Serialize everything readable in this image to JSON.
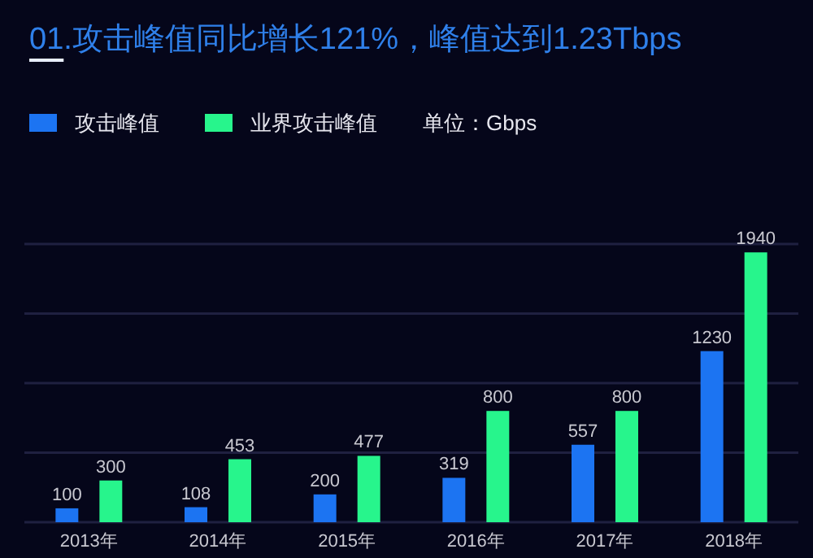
{
  "chart_data": {
    "type": "bar",
    "title": "01.攻击峰值同比增长121%，峰值达到1.23Tbps",
    "categories": [
      "2013年",
      "2014年",
      "2015年",
      "2016年",
      "2017年",
      "2018年"
    ],
    "series": [
      {
        "name": "攻击峰值",
        "color": "#1c74f2",
        "values": [
          100,
          108,
          200,
          319,
          557,
          1230
        ]
      },
      {
        "name": "业界攻击峰值",
        "color": "#27f58c",
        "values": [
          300,
          453,
          477,
          800,
          800,
          1940
        ]
      }
    ],
    "annotations": [
      "单位：Gbps"
    ],
    "ylim": [
      0,
      2000
    ],
    "yticks": [
      {
        "value": 0,
        "label": null
      },
      {
        "value": 500,
        "label": null
      },
      {
        "value": 1000,
        "label": null
      },
      {
        "value": 1500,
        "label": null
      },
      {
        "value": 2000,
        "label": null
      }
    ],
    "tick_labels": "x",
    "grid": "y",
    "legend": "top left",
    "data_labels": true
  }
}
